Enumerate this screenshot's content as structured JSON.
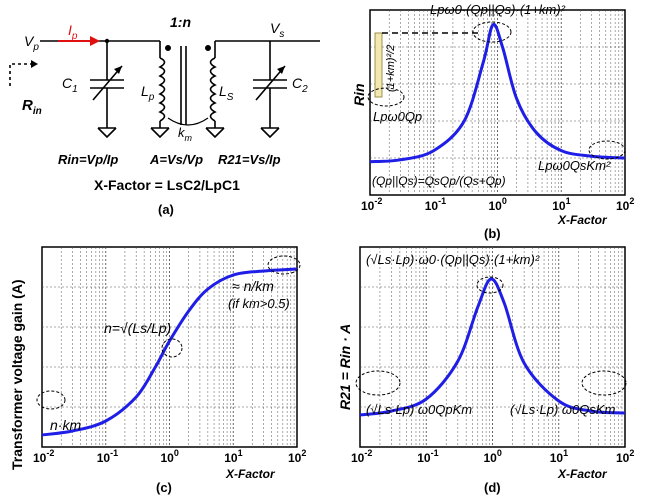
{
  "colors": {
    "curve": "#1e1ee6",
    "current": "#e01010",
    "ink": "#000000",
    "grid": "#555555",
    "highlight": "#f2e8b0"
  },
  "icons": [
    "variable-capacitor-icon",
    "coupled-inductor-icon",
    "ground-icon",
    "current-arrow-icon"
  ],
  "circuit": {
    "vp": "V",
    "vp_sub": "p",
    "ip": "I",
    "ip_sub": "p",
    "ratio": "1:n",
    "vs": "V",
    "vs_sub": "s",
    "c1": "C",
    "c1_sub": "1",
    "c2": "C",
    "c2_sub": "2",
    "lp": "L",
    "lp_sub": "p",
    "ls": "L",
    "ls_sub": "S",
    "km": "k",
    "km_sub": "m",
    "rin": "R",
    "rin_sub": "in",
    "eq1": "Rin=Vp/Ip",
    "eq2": "A=Vs/Vp",
    "eq3": "R21=Vs/Ip",
    "xfactor": "X-Factor = LsC2/LpC1",
    "caption": "(a)"
  },
  "panel_b": {
    "ylabel": "Rin",
    "xlabel": "X-Factor",
    "caption": "(b)",
    "peak_label": "Lpω0·(Qp||Qs)·(1+km)²",
    "height_label": "(1+km)²/2",
    "left_label": "Lpω0Qp",
    "right_label": "Lpω0QsKm²",
    "parallel_label": "(Qp||Qs)=QsQp/(Qs+Qp)",
    "ticks": [
      "10",
      "10",
      "10",
      "10",
      "10"
    ],
    "tick_exp": [
      "-2",
      "-1",
      "0",
      "1",
      "2"
    ]
  },
  "panel_c": {
    "ylabel": "Transformer voltage gain (A)",
    "xlabel": "X-Factor",
    "caption": "(c)",
    "left_label": "n·km",
    "mid_label": "n=√(Ls/Lp)",
    "right_label1": "≈ n/km",
    "right_label2": "(if km>0.5)",
    "ticks": [
      "10",
      "10",
      "10",
      "10",
      "10"
    ],
    "tick_exp": [
      "-2",
      "-1",
      "0",
      "1",
      "2"
    ]
  },
  "panel_d": {
    "ylabel": "R21 = Rin · A",
    "xlabel": "X-Factor",
    "caption": "(d)",
    "peak_label": "(√Ls·Lp)·ω0·(Qp||Qs)·(1+km)²",
    "left_label": "(√Ls·Lp) ω0QpKm",
    "right_label": "(√Ls·Lp) ω0QsKm",
    "ticks": [
      "10",
      "10",
      "10",
      "10",
      "10"
    ],
    "tick_exp": [
      "-2",
      "-1",
      "0",
      "1",
      "2"
    ]
  },
  "chart_data": [
    {
      "type": "line",
      "title": "",
      "xlabel": "X-Factor",
      "ylabel": "Rin",
      "xscale": "log",
      "xlim": [
        0.01,
        100
      ],
      "grid": true,
      "series": [
        {
          "x": [
            0.01,
            0.03,
            0.1,
            0.3,
            0.6,
            0.85,
            1.2,
            2,
            4,
            10,
            30,
            100
          ],
          "y": [
            0.18,
            0.19,
            0.24,
            0.4,
            0.72,
            0.92,
            0.8,
            0.52,
            0.34,
            0.24,
            0.21,
            0.2
          ]
        }
      ]
    },
    {
      "type": "line",
      "title": "",
      "xlabel": "X-Factor",
      "ylabel": "Transformer voltage gain (A)",
      "xscale": "log",
      "xlim": [
        0.01,
        100
      ],
      "grid": true,
      "series": [
        {
          "x": [
            0.01,
            0.03,
            0.1,
            0.3,
            0.6,
            1,
            2,
            4,
            10,
            30,
            100
          ],
          "y": [
            0.06,
            0.08,
            0.13,
            0.25,
            0.4,
            0.53,
            0.68,
            0.79,
            0.86,
            0.88,
            0.89
          ]
        }
      ]
    },
    {
      "type": "line",
      "title": "",
      "xlabel": "X-Factor",
      "ylabel": "R21 = Rin · A",
      "xscale": "log",
      "xlim": [
        0.01,
        100
      ],
      "grid": true,
      "series": [
        {
          "x": [
            0.01,
            0.03,
            0.1,
            0.3,
            0.6,
            0.95,
            1.5,
            3,
            10,
            30,
            100
          ],
          "y": [
            0.16,
            0.18,
            0.24,
            0.43,
            0.7,
            0.84,
            0.72,
            0.42,
            0.23,
            0.18,
            0.17
          ]
        }
      ]
    }
  ]
}
